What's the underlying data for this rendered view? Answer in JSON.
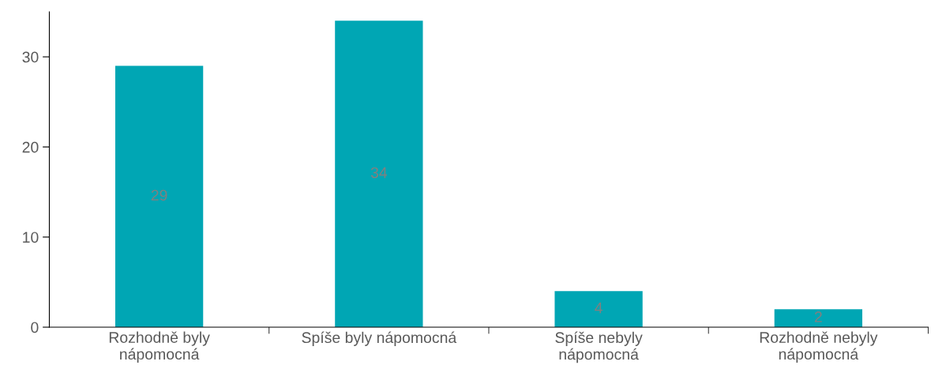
{
  "chart_data": {
    "type": "bar",
    "categories": [
      "Rozhodně byly\nnápomocná",
      "Spíše byly nápomocná",
      "Spíše nebyly\nnápomocná",
      "Rozhodně nebyly\nnápomocná"
    ],
    "values": [
      29,
      34,
      4,
      2
    ],
    "color": "#00a6b4",
    "ylim": [
      0,
      35
    ],
    "yticks": [
      0,
      10,
      20,
      30
    ],
    "data_labels": true,
    "grid": false,
    "legend": false
  }
}
